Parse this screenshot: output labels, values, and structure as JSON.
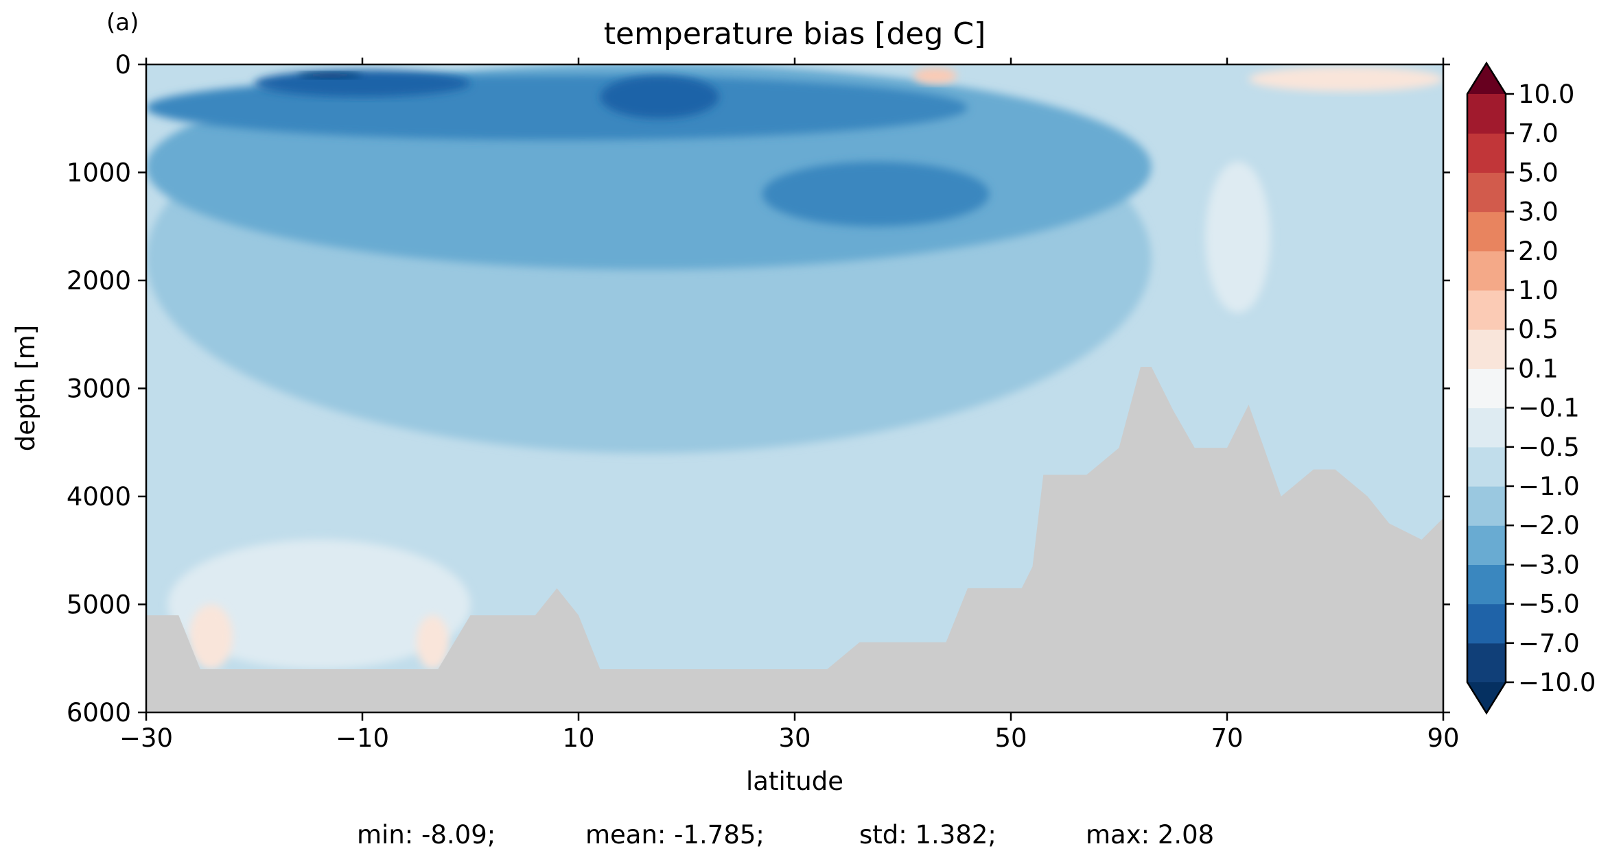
{
  "chart_data": {
    "type": "heatmap",
    "panel_label": "(a)",
    "title": "temperature bias [deg C]",
    "xlabel": "latitude",
    "ylabel": "depth [m]",
    "xlim": [
      -30,
      90
    ],
    "ylim": [
      6000,
      0
    ],
    "y_inverted": true,
    "xticks": [
      "−30",
      "−10",
      "10",
      "30",
      "50",
      "70",
      "90"
    ],
    "yticks": [
      "0",
      "1000",
      "2000",
      "3000",
      "4000",
      "5000",
      "6000"
    ],
    "colorbar": {
      "extend": "both",
      "boundaries": [
        -10.0,
        -7.0,
        -5.0,
        -3.0,
        -2.0,
        -1.0,
        -0.5,
        -0.1,
        0.1,
        0.5,
        1.0,
        2.0,
        3.0,
        5.0,
        7.0,
        10.0
      ],
      "tick_labels": [
        "10.0",
        "7.0",
        "5.0",
        "3.0",
        "2.0",
        "1.0",
        "0.5",
        "0.1",
        "−0.1",
        "−0.5",
        "−1.0",
        "−2.0",
        "−3.0",
        "−5.0",
        "−7.0",
        "−10.0"
      ],
      "colors": [
        "#103f78",
        "#1f63a8",
        "#3a87bf",
        "#69abd2",
        "#9ac8e0",
        "#c1ddeb",
        "#deebf2",
        "#f4f6f7",
        "#f9e5da",
        "#fbcbb5",
        "#f4a988",
        "#e8845f",
        "#d25b4c",
        "#c13639",
        "#a11a2d"
      ],
      "under_color": "#053061",
      "over_color": "#67001f"
    },
    "land_mask_color": "#cccccc",
    "field_regions": [
      {
        "level": "-1.0 to -0.5",
        "x": [
          -30,
          90
        ],
        "y": [
          0,
          6000
        ]
      },
      {
        "level": "-2.0 to -1.0",
        "x": [
          -30,
          63
        ],
        "y": [
          0,
          3600
        ]
      },
      {
        "level": "-3.0 to -2.0",
        "x": [
          -30,
          63
        ],
        "y": [
          0,
          1900
        ]
      },
      {
        "level": "-5.0 to -3.0",
        "x": [
          -30,
          46
        ],
        "y": [
          100,
          700
        ]
      },
      {
        "level": "-5.0 to -3.0",
        "x": [
          27,
          48
        ],
        "y": [
          900,
          1500
        ]
      },
      {
        "level": "-7.0 to -5.0",
        "x": [
          -20,
          0
        ],
        "y": [
          50,
          300
        ]
      },
      {
        "level": "-7.0 to -5.0",
        "x": [
          12,
          23
        ],
        "y": [
          100,
          500
        ]
      },
      {
        "level": "-10.0 to -7.0",
        "x": [
          -16,
          -10
        ],
        "y": [
          70,
          130
        ]
      },
      {
        "level": "-0.5 to -0.1",
        "x": [
          68,
          74
        ],
        "y": [
          900,
          2300
        ]
      },
      {
        "level": "-0.5 to -0.1",
        "x": [
          -28,
          0
        ],
        "y": [
          4400,
          5600
        ]
      },
      {
        "level": "0.5 to 1.0",
        "x": [
          41,
          45
        ],
        "y": [
          30,
          180
        ]
      },
      {
        "level": "0.1 to 0.5",
        "x": [
          72,
          90
        ],
        "y": [
          20,
          250
        ]
      },
      {
        "level": "0.1 to 0.5",
        "x": [
          -26,
          -22
        ],
        "y": [
          5000,
          5600
        ]
      },
      {
        "level": "0.1 to 0.5",
        "x": [
          -5,
          -2
        ],
        "y": [
          5100,
          5600
        ]
      }
    ],
    "bathymetry_depth": {
      "latitude": [
        -30,
        -27,
        -25,
        -23,
        -21,
        -20,
        -17,
        -13,
        -10,
        -5,
        -3,
        0,
        3,
        6,
        8,
        10,
        12,
        15,
        20,
        25,
        30,
        33,
        36,
        40,
        44,
        46,
        48,
        49,
        51,
        52,
        53,
        55,
        57,
        60,
        62,
        63,
        65,
        67,
        70,
        72,
        75,
        78,
        80,
        83,
        85,
        88,
        90
      ],
      "depth": [
        5100,
        5100,
        5600,
        5600,
        5600,
        5600,
        5600,
        5600,
        5600,
        5600,
        5600,
        5100,
        5100,
        5100,
        4850,
        5100,
        5600,
        5600,
        5600,
        5600,
        5600,
        5600,
        5350,
        5350,
        5350,
        4850,
        4850,
        4850,
        4850,
        4650,
        3800,
        3800,
        3800,
        3550,
        2800,
        2800,
        3200,
        3550,
        3550,
        3150,
        4000,
        3750,
        3750,
        4000,
        4250,
        4400,
        4200
      ]
    }
  },
  "stats": {
    "min": "min: -8.09;",
    "mean": "mean: -1.785;",
    "std": "std: 1.382;",
    "max": "max: 2.08"
  }
}
